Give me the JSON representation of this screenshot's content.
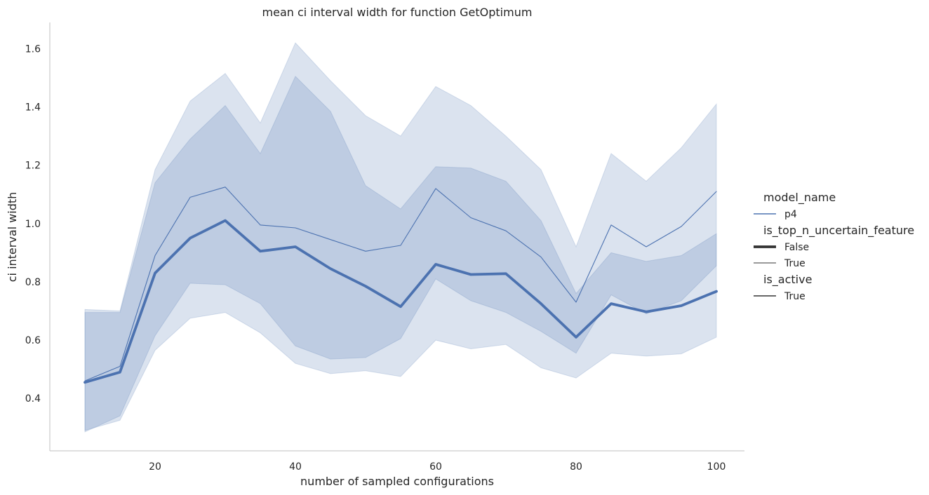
{
  "chart_data": {
    "type": "line",
    "title": "mean ci interval width for function GetOptimum",
    "xlabel": "number of sampled configurations",
    "ylabel": "ci interval width",
    "xlim": [
      5,
      104
    ],
    "ylim": [
      0.22,
      1.69
    ],
    "xticks": [
      20,
      40,
      60,
      80,
      100
    ],
    "yticks": [
      0.4,
      0.6,
      0.8,
      1.0,
      1.2,
      1.4,
      1.6
    ],
    "grid": false,
    "legend_placement": "right",
    "color": "#4c72b0",
    "x": [
      10,
      15,
      20,
      25,
      30,
      35,
      40,
      45,
      50,
      55,
      60,
      65,
      70,
      75,
      80,
      85,
      90,
      95,
      100
    ],
    "series": [
      {
        "name": "False",
        "linewidth": "thick",
        "values": [
          0.455,
          0.49,
          0.83,
          0.95,
          1.01,
          0.905,
          0.92,
          0.845,
          0.785,
          0.715,
          0.86,
          0.825,
          0.828,
          0.725,
          0.61,
          0.725,
          0.697,
          0.718,
          0.767
        ],
        "ci_lower": [
          0.29,
          0.325,
          0.565,
          0.675,
          0.695,
          0.625,
          0.52,
          0.485,
          0.495,
          0.475,
          0.6,
          0.57,
          0.585,
          0.505,
          0.47,
          0.555,
          0.545,
          0.553,
          0.61
        ],
        "ci_upper": [
          0.705,
          0.7,
          1.185,
          1.42,
          1.515,
          1.345,
          1.62,
          1.49,
          1.37,
          1.3,
          1.47,
          1.405,
          1.3,
          1.185,
          0.92,
          1.24,
          1.145,
          1.26,
          1.41
        ]
      },
      {
        "name": "True",
        "linewidth": "thin",
        "values": [
          0.46,
          0.51,
          0.89,
          1.09,
          1.125,
          0.995,
          0.985,
          0.945,
          0.905,
          0.925,
          1.12,
          1.02,
          0.975,
          0.885,
          0.73,
          0.995,
          0.92,
          0.99,
          1.11
        ],
        "ci_lower": [
          0.285,
          0.34,
          0.615,
          0.795,
          0.79,
          0.725,
          0.58,
          0.535,
          0.54,
          0.605,
          0.81,
          0.735,
          0.695,
          0.63,
          0.555,
          0.755,
          0.69,
          0.735,
          0.855
        ],
        "ci_upper": [
          0.695,
          0.695,
          1.14,
          1.29,
          1.405,
          1.24,
          1.505,
          1.385,
          1.13,
          1.05,
          1.195,
          1.19,
          1.145,
          1.01,
          0.76,
          0.9,
          0.87,
          0.89,
          0.965
        ]
      }
    ],
    "legend": {
      "sections": [
        {
          "title": "model_name",
          "entries": [
            {
              "label": "p4",
              "style": "color"
            }
          ]
        },
        {
          "title": "is_top_n_uncertain_feature",
          "entries": [
            {
              "label": "False",
              "style": "thick"
            },
            {
              "label": "True",
              "style": "thin"
            }
          ]
        },
        {
          "title": "is_active",
          "entries": [
            {
              "label": "True",
              "style": "solid"
            }
          ]
        }
      ]
    }
  }
}
